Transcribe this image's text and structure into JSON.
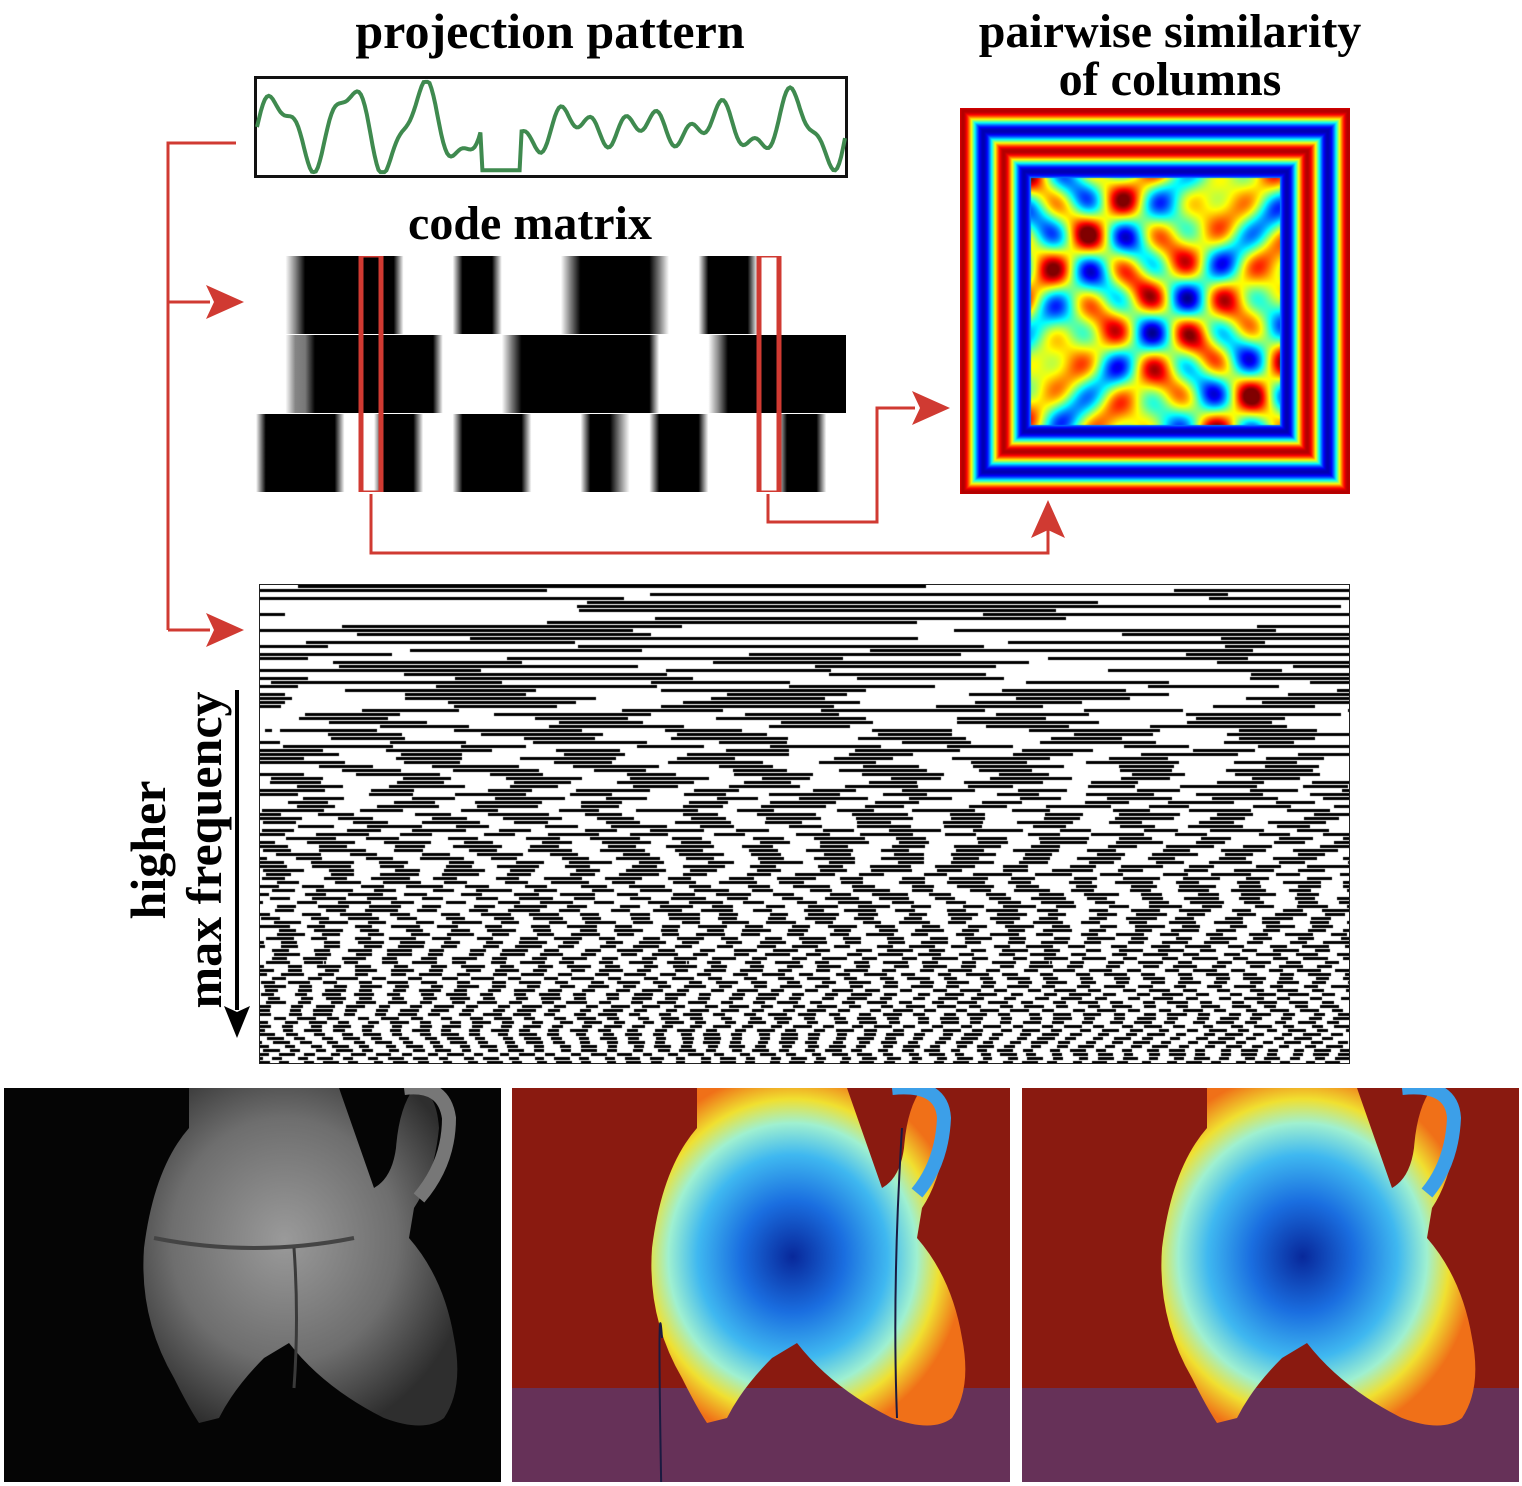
{
  "titles": {
    "projection_pattern": "projection pattern",
    "pairwise_similarity_line1": "pairwise similarity",
    "pairwise_similarity_line2": "of columns",
    "code_matrix": "code matrix"
  },
  "axis_label": {
    "line1": "higher",
    "line2": "max frequency"
  },
  "colors": {
    "arrow": "#d03a32",
    "signal": "#3f8a4f",
    "frame": "#111111",
    "highlight_box": "#d03a32"
  },
  "code_matrix": {
    "rows": 3,
    "highlighted_columns": 2
  },
  "bottom_images": [
    {
      "name": "photo-grayscale",
      "content": "ceramic tripod vessel photograph"
    },
    {
      "name": "depth-map-with-artifacts",
      "content": "jet colormap depth reconstruction"
    },
    {
      "name": "depth-map-clean",
      "content": "jet colormap depth reconstruction"
    }
  ]
}
